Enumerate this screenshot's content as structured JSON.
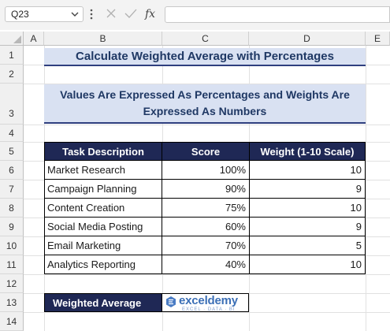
{
  "formula_bar": {
    "name_box": "Q23",
    "formula": ""
  },
  "columns": [
    "A",
    "B",
    "C",
    "D",
    "E"
  ],
  "rows": [
    "1",
    "2",
    "3",
    "4",
    "5",
    "6",
    "7",
    "8",
    "9",
    "10",
    "11",
    "12",
    "13",
    "14"
  ],
  "sheet": {
    "title": "Calculate Weighted Average with Percentages",
    "subtitle": "Values Are Expressed As Percentages and Weights Are Expressed As Numbers",
    "table": {
      "headers": [
        "Task Description",
        "Score",
        "Weight (1-10 Scale)"
      ],
      "rows": [
        {
          "task": "Market Research",
          "score": "100%",
          "weight": "10"
        },
        {
          "task": "Campaign Planning",
          "score": "90%",
          "weight": "9"
        },
        {
          "task": "Content Creation",
          "score": "75%",
          "weight": "10"
        },
        {
          "task": "Social Media Posting",
          "score": "60%",
          "weight": "9"
        },
        {
          "task": "Email Marketing",
          "score": "70%",
          "weight": "5"
        },
        {
          "task": "Analytics Reporting",
          "score": "40%",
          "weight": "10"
        }
      ]
    },
    "weighted_average_label": "Weighted Average",
    "weighted_average_value": ""
  },
  "watermark": {
    "name": "exceldemy",
    "tagline": "EXCEL · DATA · BI"
  },
  "colors": {
    "header_fill": "#1f2855",
    "title_fill": "#d9e1f2",
    "title_text": "#1f3864"
  }
}
